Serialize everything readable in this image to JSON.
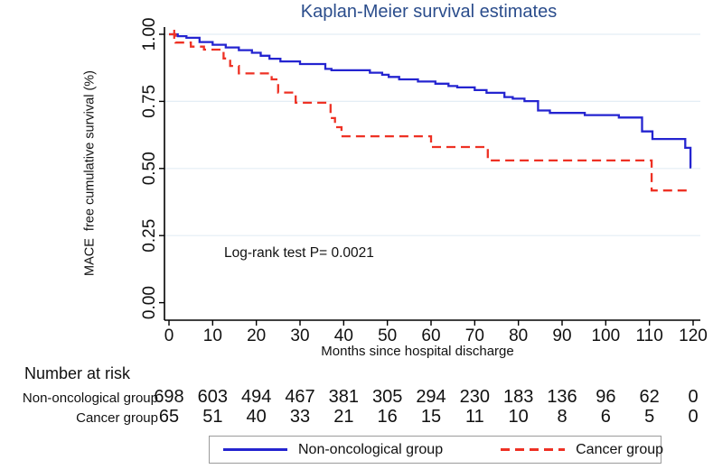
{
  "title": "Kaplan-Meier survival estimates",
  "colors": {
    "title_text": "#2b4d8c",
    "non_oncological_line": "#2424d0",
    "cancer_line": "#ee3124",
    "gridline": "#e4edf5",
    "axis": "#000000",
    "text": "#111111",
    "legend_border": "#9b9b9b"
  },
  "chart_data": {
    "type": "line",
    "subtype": "kaplan-meier-step",
    "title": "Kaplan-Meier survival estimates",
    "xlabel": "Months since hospital discharge",
    "ylabel": "MACE  free cumulative survival (%)",
    "xlim": [
      0,
      120
    ],
    "ylim": [
      0.0,
      1.0
    ],
    "x_ticks": [
      0,
      10,
      20,
      30,
      40,
      50,
      60,
      70,
      80,
      90,
      100,
      110,
      120
    ],
    "y_ticks": [
      {
        "value": 1.0,
        "label": "1.00"
      },
      {
        "value": 0.75,
        "label": "0.75"
      },
      {
        "value": 0.5,
        "label": "0.50"
      },
      {
        "value": 0.25,
        "label": "0.25"
      },
      {
        "value": 0.0,
        "label": "0.00"
      }
    ],
    "grid": "horizontal",
    "legend_position": "bottom",
    "annotation": "Log-rank test P= 0.0021",
    "series": [
      {
        "name": "Non-oncological group",
        "style": "solid",
        "color": "#2424d0",
        "end_month": 119.6,
        "steps": [
          [
            0,
            1.0
          ],
          [
            2,
            0.993
          ],
          [
            4,
            0.987
          ],
          [
            7,
            0.971
          ],
          [
            10,
            0.961
          ],
          [
            13,
            0.951
          ],
          [
            16,
            0.941
          ],
          [
            19,
            0.931
          ],
          [
            21,
            0.92
          ],
          [
            23,
            0.909
          ],
          [
            25.5,
            0.899
          ],
          [
            30,
            0.889
          ],
          [
            35.8,
            0.871
          ],
          [
            37.2,
            0.866
          ],
          [
            46,
            0.857
          ],
          [
            48.8,
            0.849
          ],
          [
            50.3,
            0.841
          ],
          [
            52.7,
            0.832
          ],
          [
            57,
            0.824
          ],
          [
            61,
            0.816
          ],
          [
            64,
            0.807
          ],
          [
            66,
            0.802
          ],
          [
            70,
            0.792
          ],
          [
            72.7,
            0.782
          ],
          [
            76.8,
            0.766
          ],
          [
            78.7,
            0.76
          ],
          [
            81.4,
            0.751
          ],
          [
            84.5,
            0.716
          ],
          [
            87.2,
            0.707
          ],
          [
            95.2,
            0.699
          ],
          [
            103,
            0.69
          ],
          [
            108.3,
            0.638
          ],
          [
            110.7,
            0.61
          ],
          [
            118.2,
            0.577
          ],
          [
            119.4,
            0.504
          ]
        ]
      },
      {
        "name": "Cancer group",
        "style": "dashed",
        "color": "#ee3124",
        "end_month": 119.6,
        "censor_tick_month": 1.2,
        "steps": [
          [
            0,
            1.0
          ],
          [
            1.5,
            0.969
          ],
          [
            5,
            0.954
          ],
          [
            8,
            0.943
          ],
          [
            12.5,
            0.91
          ],
          [
            14,
            0.882
          ],
          [
            16,
            0.854
          ],
          [
            23.5,
            0.832
          ],
          [
            25,
            0.783
          ],
          [
            29,
            0.745
          ],
          [
            37,
            0.688
          ],
          [
            38,
            0.654
          ],
          [
            39.5,
            0.62
          ],
          [
            60,
            0.58
          ],
          [
            73,
            0.53
          ],
          [
            110.5,
            0.418
          ]
        ]
      }
    ]
  },
  "risk_table": {
    "header": "Number at risk",
    "months": [
      0,
      10,
      20,
      30,
      40,
      50,
      60,
      70,
      80,
      90,
      100,
      110,
      120
    ],
    "rows": [
      {
        "label": "Non-oncological group",
        "values": [
          698,
          603,
          494,
          467,
          381,
          305,
          294,
          230,
          183,
          136,
          96,
          62,
          0
        ]
      },
      {
        "label": "Cancer group",
        "values": [
          65,
          51,
          40,
          33,
          21,
          16,
          15,
          11,
          10,
          8,
          6,
          5,
          0
        ]
      }
    ]
  },
  "legend": {
    "items": [
      {
        "label": "Non-oncological group",
        "style": "solid"
      },
      {
        "label": "Cancer group",
        "style": "dashed"
      }
    ]
  }
}
